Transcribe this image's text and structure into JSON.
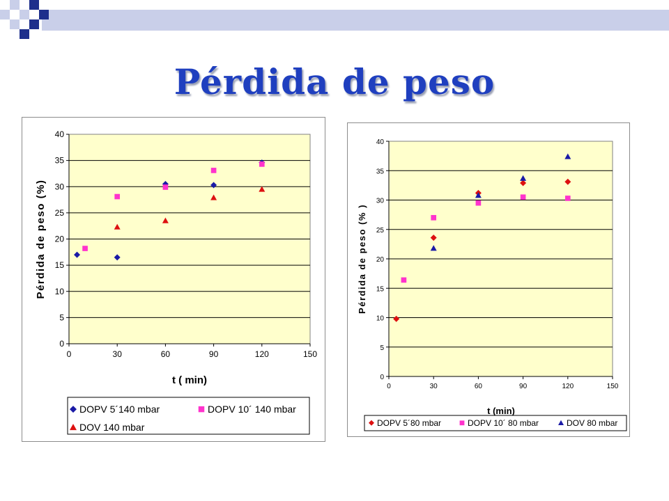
{
  "slide": {
    "title": "Pérdida de peso"
  },
  "colors": {
    "plot_bg": "#ffffcc",
    "diamond": "#1a1aa6",
    "square": "#ff33cc",
    "triangle": "#dd1010",
    "right_diamond": "#dd1010",
    "right_triangle": "#1a1aa6",
    "deco_navy": "#1e2f8c",
    "deco_light": "#c9cfe9"
  },
  "chart_data": [
    {
      "type": "scatter",
      "title": "",
      "xlabel": "t ( min)",
      "ylabel": "Pérdida de peso (%)",
      "xlim": [
        0,
        150
      ],
      "ylim": [
        0,
        40
      ],
      "x_ticks": [
        0,
        30,
        60,
        90,
        120,
        150
      ],
      "y_ticks": [
        0,
        5,
        10,
        15,
        20,
        25,
        30,
        35,
        40
      ],
      "grid": "horizontal",
      "legend": "bottom",
      "series": [
        {
          "name": "DOPV 5´140 mbar",
          "marker": "diamond",
          "color": "#1a1aa6",
          "points": [
            [
              5,
              17.0
            ],
            [
              30,
              16.5
            ],
            [
              60,
              30.5
            ],
            [
              90,
              30.3
            ],
            [
              120,
              34.6
            ]
          ]
        },
        {
          "name": "DOPV 10´ 140  mbar",
          "marker": "square",
          "color": "#ff33cc",
          "points": [
            [
              10,
              18.2
            ],
            [
              30,
              28.1
            ],
            [
              60,
              29.9
            ],
            [
              90,
              33.1
            ],
            [
              120,
              34.3
            ]
          ]
        },
        {
          "name": "DOV 140 mbar",
          "marker": "triangle",
          "color": "#dd1010",
          "points": [
            [
              30,
              22.3
            ],
            [
              60,
              23.5
            ],
            [
              90,
              27.9
            ],
            [
              120,
              29.5
            ]
          ]
        }
      ]
    },
    {
      "type": "scatter",
      "title": "",
      "xlabel": "t (min)",
      "ylabel": "Pérdida de peso (% )",
      "xlim": [
        0,
        150
      ],
      "ylim": [
        0,
        40
      ],
      "x_ticks": [
        0,
        30,
        60,
        90,
        120,
        150
      ],
      "y_ticks": [
        0,
        5,
        10,
        15,
        20,
        25,
        30,
        35,
        40
      ],
      "grid": "horizontal",
      "legend": "bottom",
      "series": [
        {
          "name": "DOPV 5´80  mbar",
          "marker": "diamond",
          "color": "#dd1010",
          "points": [
            [
              5,
              9.8
            ],
            [
              30,
              23.6
            ],
            [
              60,
              31.2
            ],
            [
              90,
              32.9
            ],
            [
              120,
              33.1
            ]
          ]
        },
        {
          "name": "DOPV 10´ 80 mbar",
          "marker": "square",
          "color": "#ff33cc",
          "points": [
            [
              10,
              16.4
            ],
            [
              30,
              27.0
            ],
            [
              60,
              29.5
            ],
            [
              90,
              30.5
            ],
            [
              120,
              30.3
            ]
          ]
        },
        {
          "name": "DOV 80 mbar",
          "marker": "triangle",
          "color": "#1a1aa6",
          "points": [
            [
              30,
              21.8
            ],
            [
              60,
              30.8
            ],
            [
              90,
              33.7
            ],
            [
              120,
              37.4
            ]
          ]
        }
      ]
    }
  ]
}
